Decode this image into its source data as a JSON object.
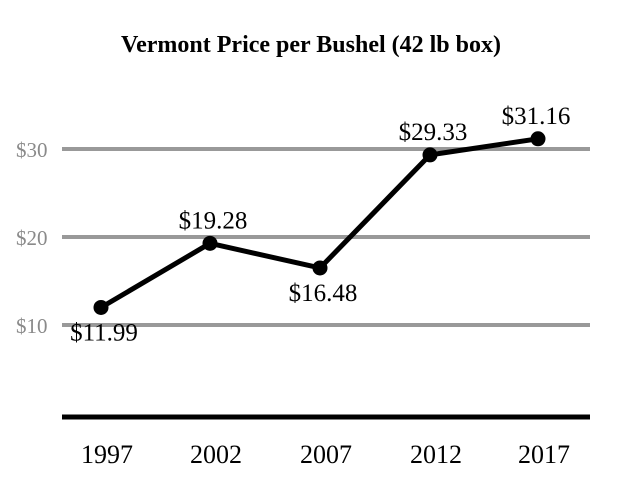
{
  "chart_data": {
    "type": "line",
    "title": "Vermont Price per Bushel (42 lb box)",
    "xlabel": "",
    "ylabel": "",
    "categories": [
      "1997",
      "2002",
      "2007",
      "2012",
      "2017"
    ],
    "series": [
      {
        "name": "Price per Bushel",
        "values": [
          11.99,
          19.28,
          16.48,
          29.33,
          31.16
        ]
      }
    ],
    "data_labels": [
      "$11.99",
      "$19.28",
      "$16.48",
      "$29.33",
      "$31.16"
    ],
    "data_label_positions": [
      "below",
      "above",
      "below",
      "above",
      "above"
    ],
    "yticks": [
      10,
      20,
      30
    ],
    "ytick_labels": [
      "$10",
      "$20",
      "$30"
    ],
    "ylim": [
      0,
      36
    ],
    "grid": true,
    "colors": {
      "line": "#000000",
      "grid": "#999999",
      "ytick": "#8a8a8a"
    }
  }
}
